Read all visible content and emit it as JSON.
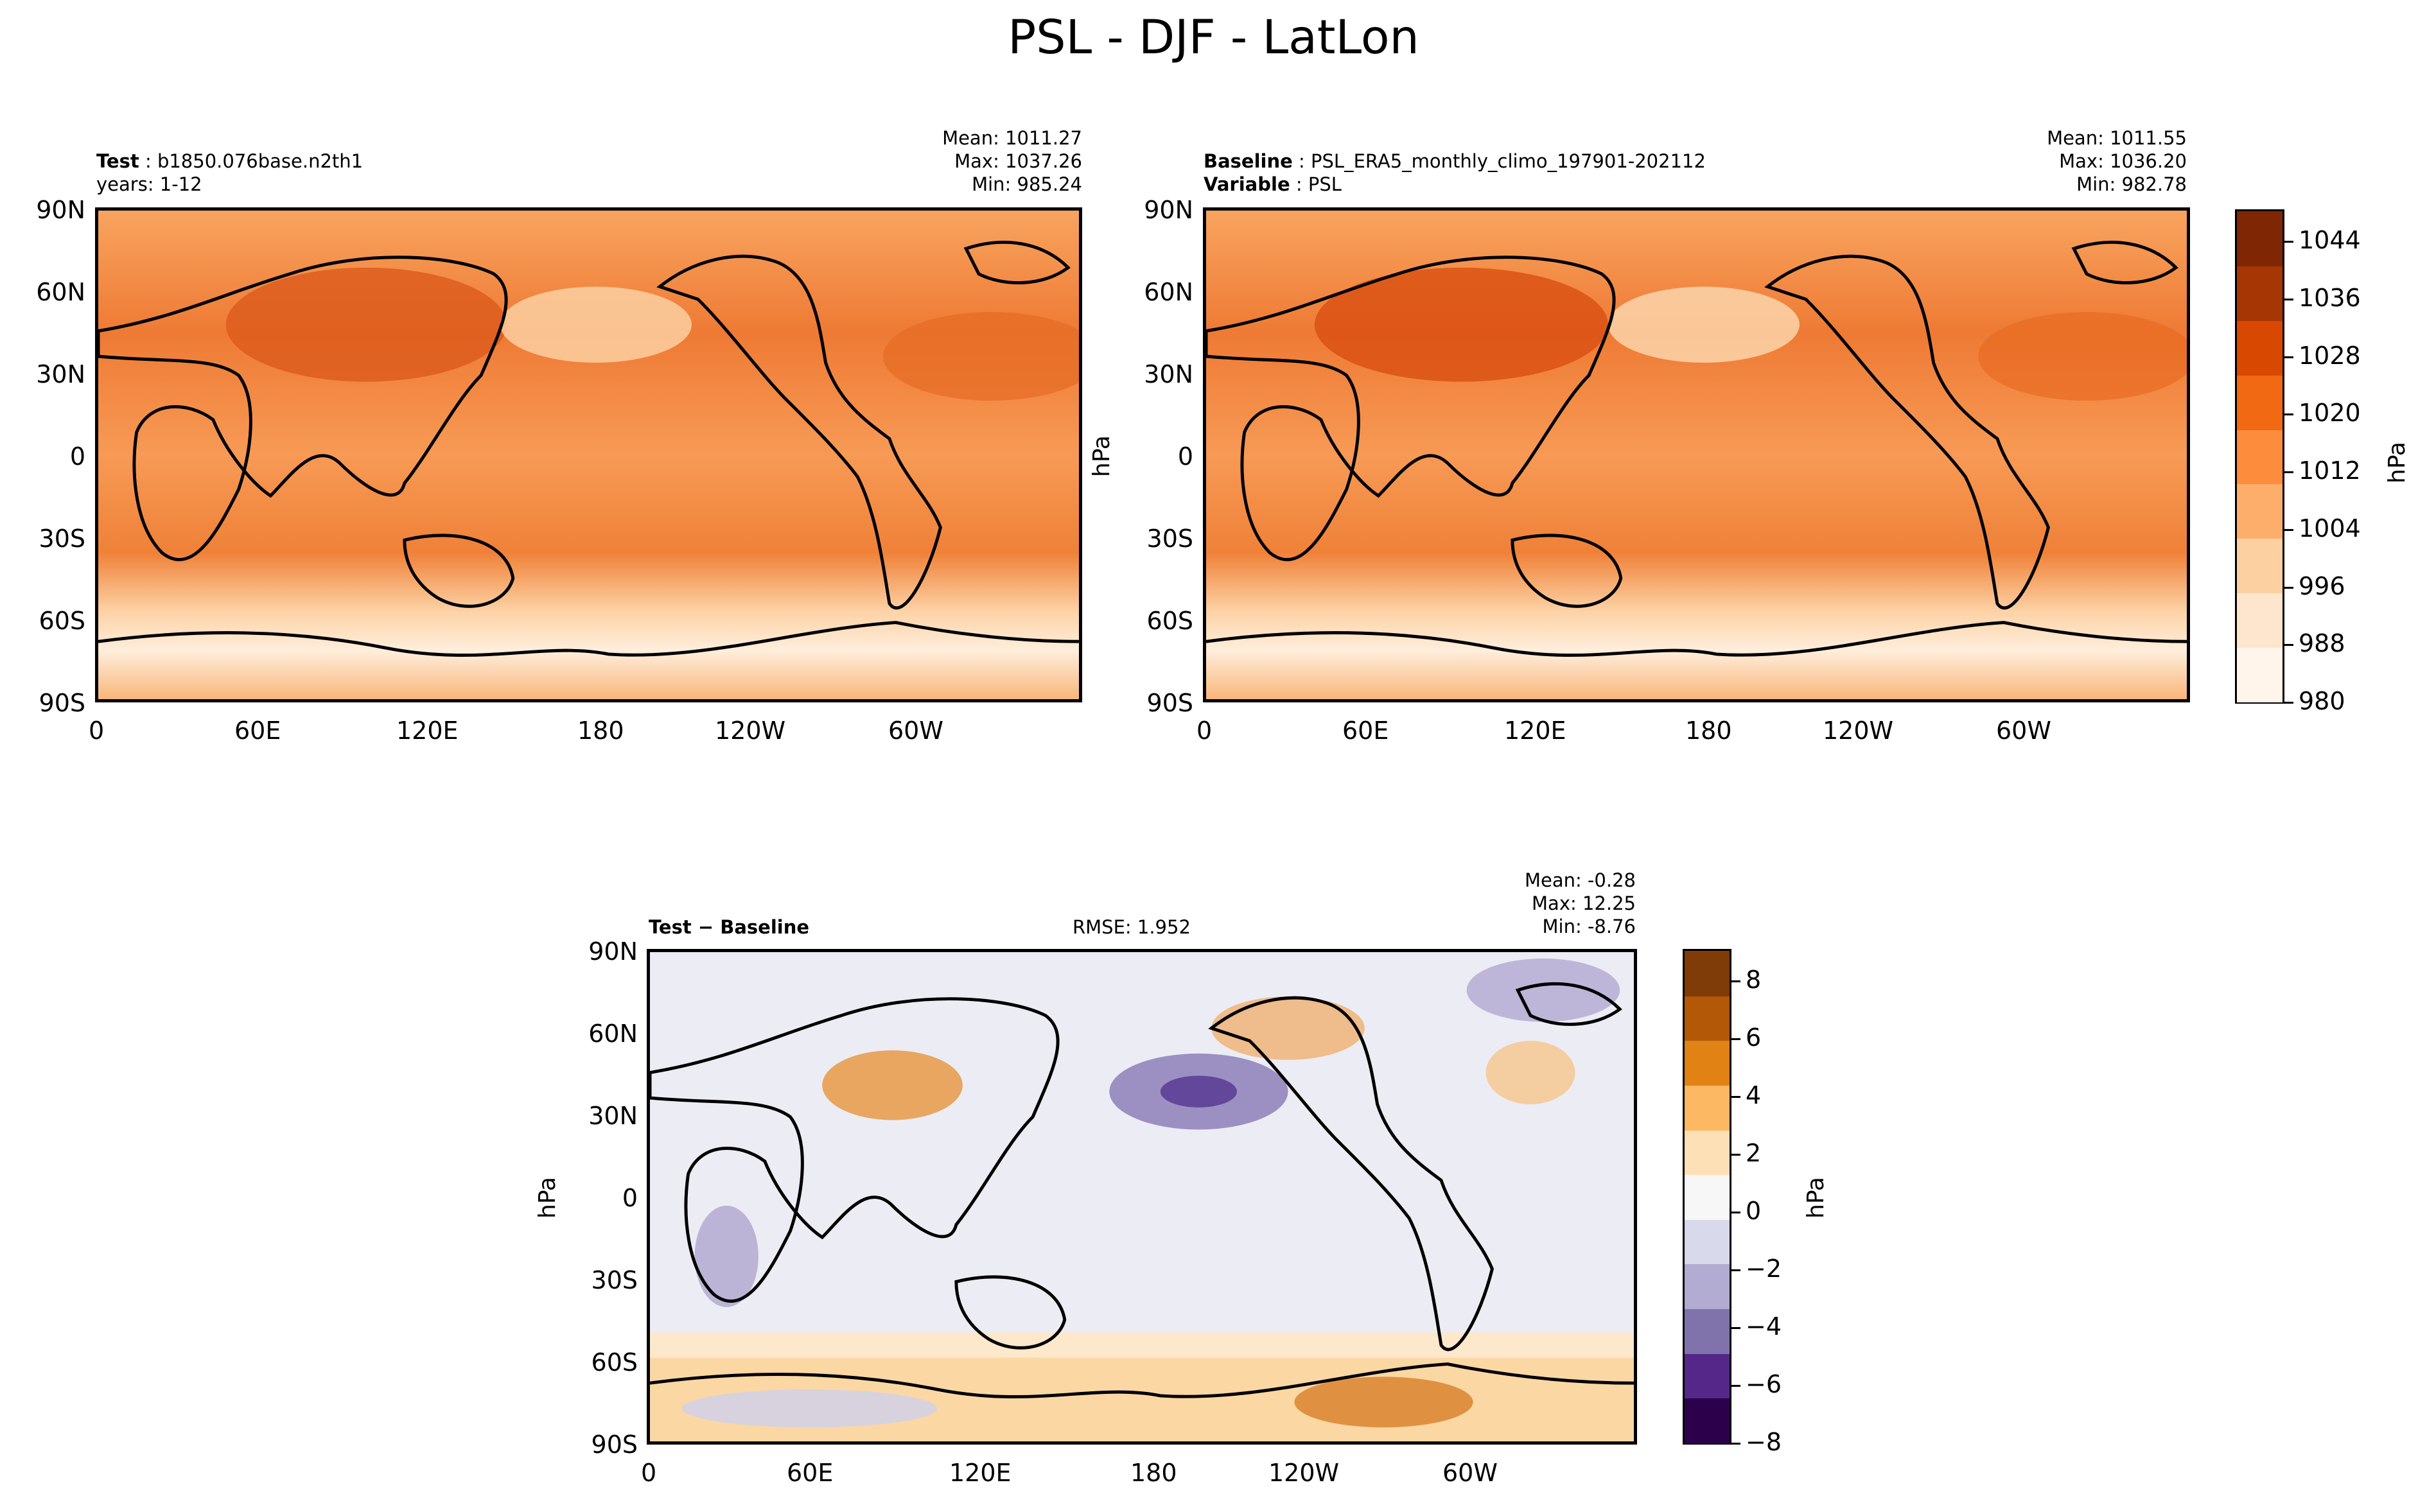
{
  "figure_title": "PSL - DJF - LatLon",
  "axes": {
    "lat_ticks": [
      "90N",
      "60N",
      "30N",
      "0",
      "30S",
      "60S",
      "90S"
    ],
    "lon_ticks": [
      "0",
      "60E",
      "120E",
      "180",
      "120W",
      "60W"
    ]
  },
  "panels": {
    "test": {
      "label_bold": "Test",
      "label_text": "b1850.076base.n2th1",
      "line2": "years: 1-12",
      "mean": "Mean: 1011.27",
      "max": "Max: 1037.26",
      "min": "Min: 985.24",
      "fill_color": "#f3883f"
    },
    "baseline": {
      "label_bold": "Baseline",
      "label_text": "PSL_ERA5_monthly_climo_197901-202112",
      "line2_bold": "Variable",
      "line2_text": "PSL",
      "mean": "Mean: 1011.55",
      "max": "Max: 1036.20",
      "min": "Min: 982.78",
      "ylabel": "hPa",
      "fill_color": "#f3883f"
    },
    "diff": {
      "label": "Test − Baseline",
      "rmse": "RMSE: 1.952",
      "mean": "Mean: -0.28",
      "max": "Max: 12.25",
      "min": "Min: -8.76",
      "ylabel": "hPa",
      "fill_color": "#ececf4"
    }
  },
  "colorbar_top": {
    "label": "hPa",
    "ticks": [
      "1044",
      "1036",
      "1028",
      "1020",
      "1012",
      "1004",
      "996",
      "988",
      "980"
    ],
    "colors": [
      "#fff5eb",
      "#fee6ce",
      "#fdd0a2",
      "#fdae6b",
      "#fd8d3c",
      "#f16913",
      "#d94801",
      "#a63603",
      "#7f2704"
    ]
  },
  "colorbar_diff": {
    "label": "hPa",
    "ticks": [
      "8",
      "6",
      "4",
      "2",
      "0",
      "−2",
      "−4",
      "−6",
      "−8"
    ],
    "colors": [
      "#2d004b",
      "#542788",
      "#8073ac",
      "#b2abd2",
      "#d8daeb",
      "#f7f7f7",
      "#fee0b6",
      "#fdb863",
      "#e08214",
      "#b35806",
      "#7f3b08"
    ]
  },
  "chart_data": [
    {
      "type": "heatmap",
      "title": "Test: b1850.076base.n2th1",
      "stats": {
        "mean": 1011.27,
        "max": 1037.26,
        "min": 985.24
      },
      "units": "hPa",
      "xlim": [
        "0",
        "360"
      ],
      "ylim": [
        "90S",
        "90N"
      ]
    },
    {
      "type": "heatmap",
      "title": "Baseline: PSL_ERA5_monthly_climo_197901-202112",
      "stats": {
        "mean": 1011.55,
        "max": 1036.2,
        "min": 982.78
      },
      "units": "hPa",
      "color_range": [
        980,
        1048
      ]
    },
    {
      "type": "heatmap",
      "title": "Test − Baseline",
      "stats": {
        "mean": -0.28,
        "max": 12.25,
        "min": -8.76,
        "rmse": 1.952
      },
      "units": "hPa",
      "color_range": [
        -9,
        9
      ]
    }
  ]
}
